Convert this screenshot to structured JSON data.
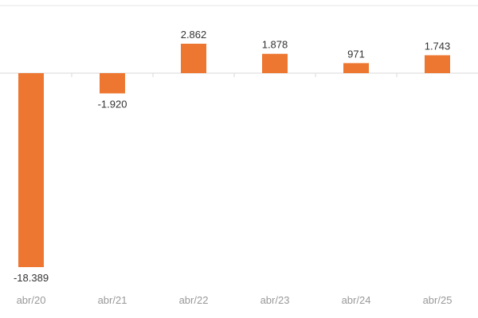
{
  "chart_data": {
    "type": "bar",
    "categories": [
      "abr/20",
      "abr/21",
      "abr/22",
      "abr/23",
      "abr/24",
      "abr/25"
    ],
    "values": [
      -18389,
      -1920,
      2862,
      1878,
      971,
      1743
    ],
    "value_labels": [
      "-18.389",
      "-1.920",
      "2.862",
      "1.878",
      "971",
      "1.743"
    ],
    "title": "",
    "xlabel": "",
    "ylabel": "",
    "grid": false,
    "bar_color": "#ED7731",
    "axis_color": "#D9D9D9"
  }
}
